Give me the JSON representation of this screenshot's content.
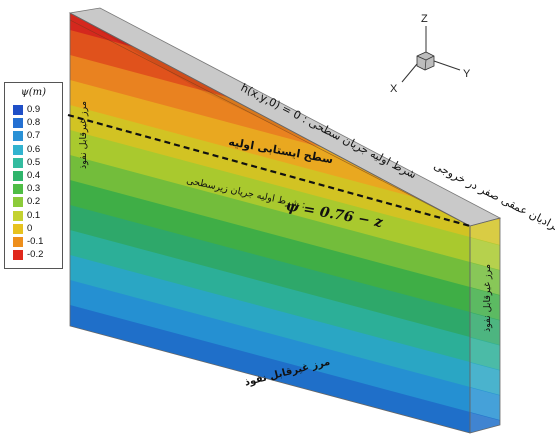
{
  "legend": {
    "title": "ψ(m)",
    "entries": [
      {
        "label": "0.9",
        "color": "#1f4fc7"
      },
      {
        "label": "0.8",
        "color": "#2470d2"
      },
      {
        "label": "0.7",
        "color": "#2a91d6"
      },
      {
        "label": "0.6",
        "color": "#32b3cf"
      },
      {
        "label": "0.5",
        "color": "#33bca0"
      },
      {
        "label": "0.4",
        "color": "#2fb56b"
      },
      {
        "label": "0.3",
        "color": "#4fbd45"
      },
      {
        "label": "0.2",
        "color": "#8ccb3a"
      },
      {
        "label": "0.1",
        "color": "#c4d230"
      },
      {
        "label": "0",
        "color": "#e7c21f"
      },
      {
        "label": "-0.1",
        "color": "#ee8f1c"
      },
      {
        "label": "-0.2",
        "color": "#e0281c"
      }
    ]
  },
  "domain_bands": [
    "#d4281e",
    "#e0521c",
    "#e98220",
    "#e9a820",
    "#d2c323",
    "#a9c92e",
    "#73bd3b",
    "#3fae46",
    "#2ea86a",
    "#2caf98",
    "#2aa6c4",
    "#2590d2",
    "#1f6fc9"
  ],
  "axes": {
    "z": "Z",
    "y": "Y",
    "x": "X"
  },
  "annotations": {
    "surface_flow_condition": "h(x,y,0) = 0 : شرط اولیه جریان سطحی",
    "initial_water_table": "سطح ایستابی اولیه",
    "subsurface_condition_text": "شرط اولیه جریان زیرسطحی :",
    "subsurface_condition_formula": "ψ = 0.76 − z",
    "outlet_gradient": "گرادیان عمقی صفر در خروجی",
    "left_boundary": "مرز غیرقابل نفوذ",
    "right_boundary": "مرز غیرقابل نفوذ",
    "bottom_boundary": "مرز غیرقابل نفوذ"
  }
}
